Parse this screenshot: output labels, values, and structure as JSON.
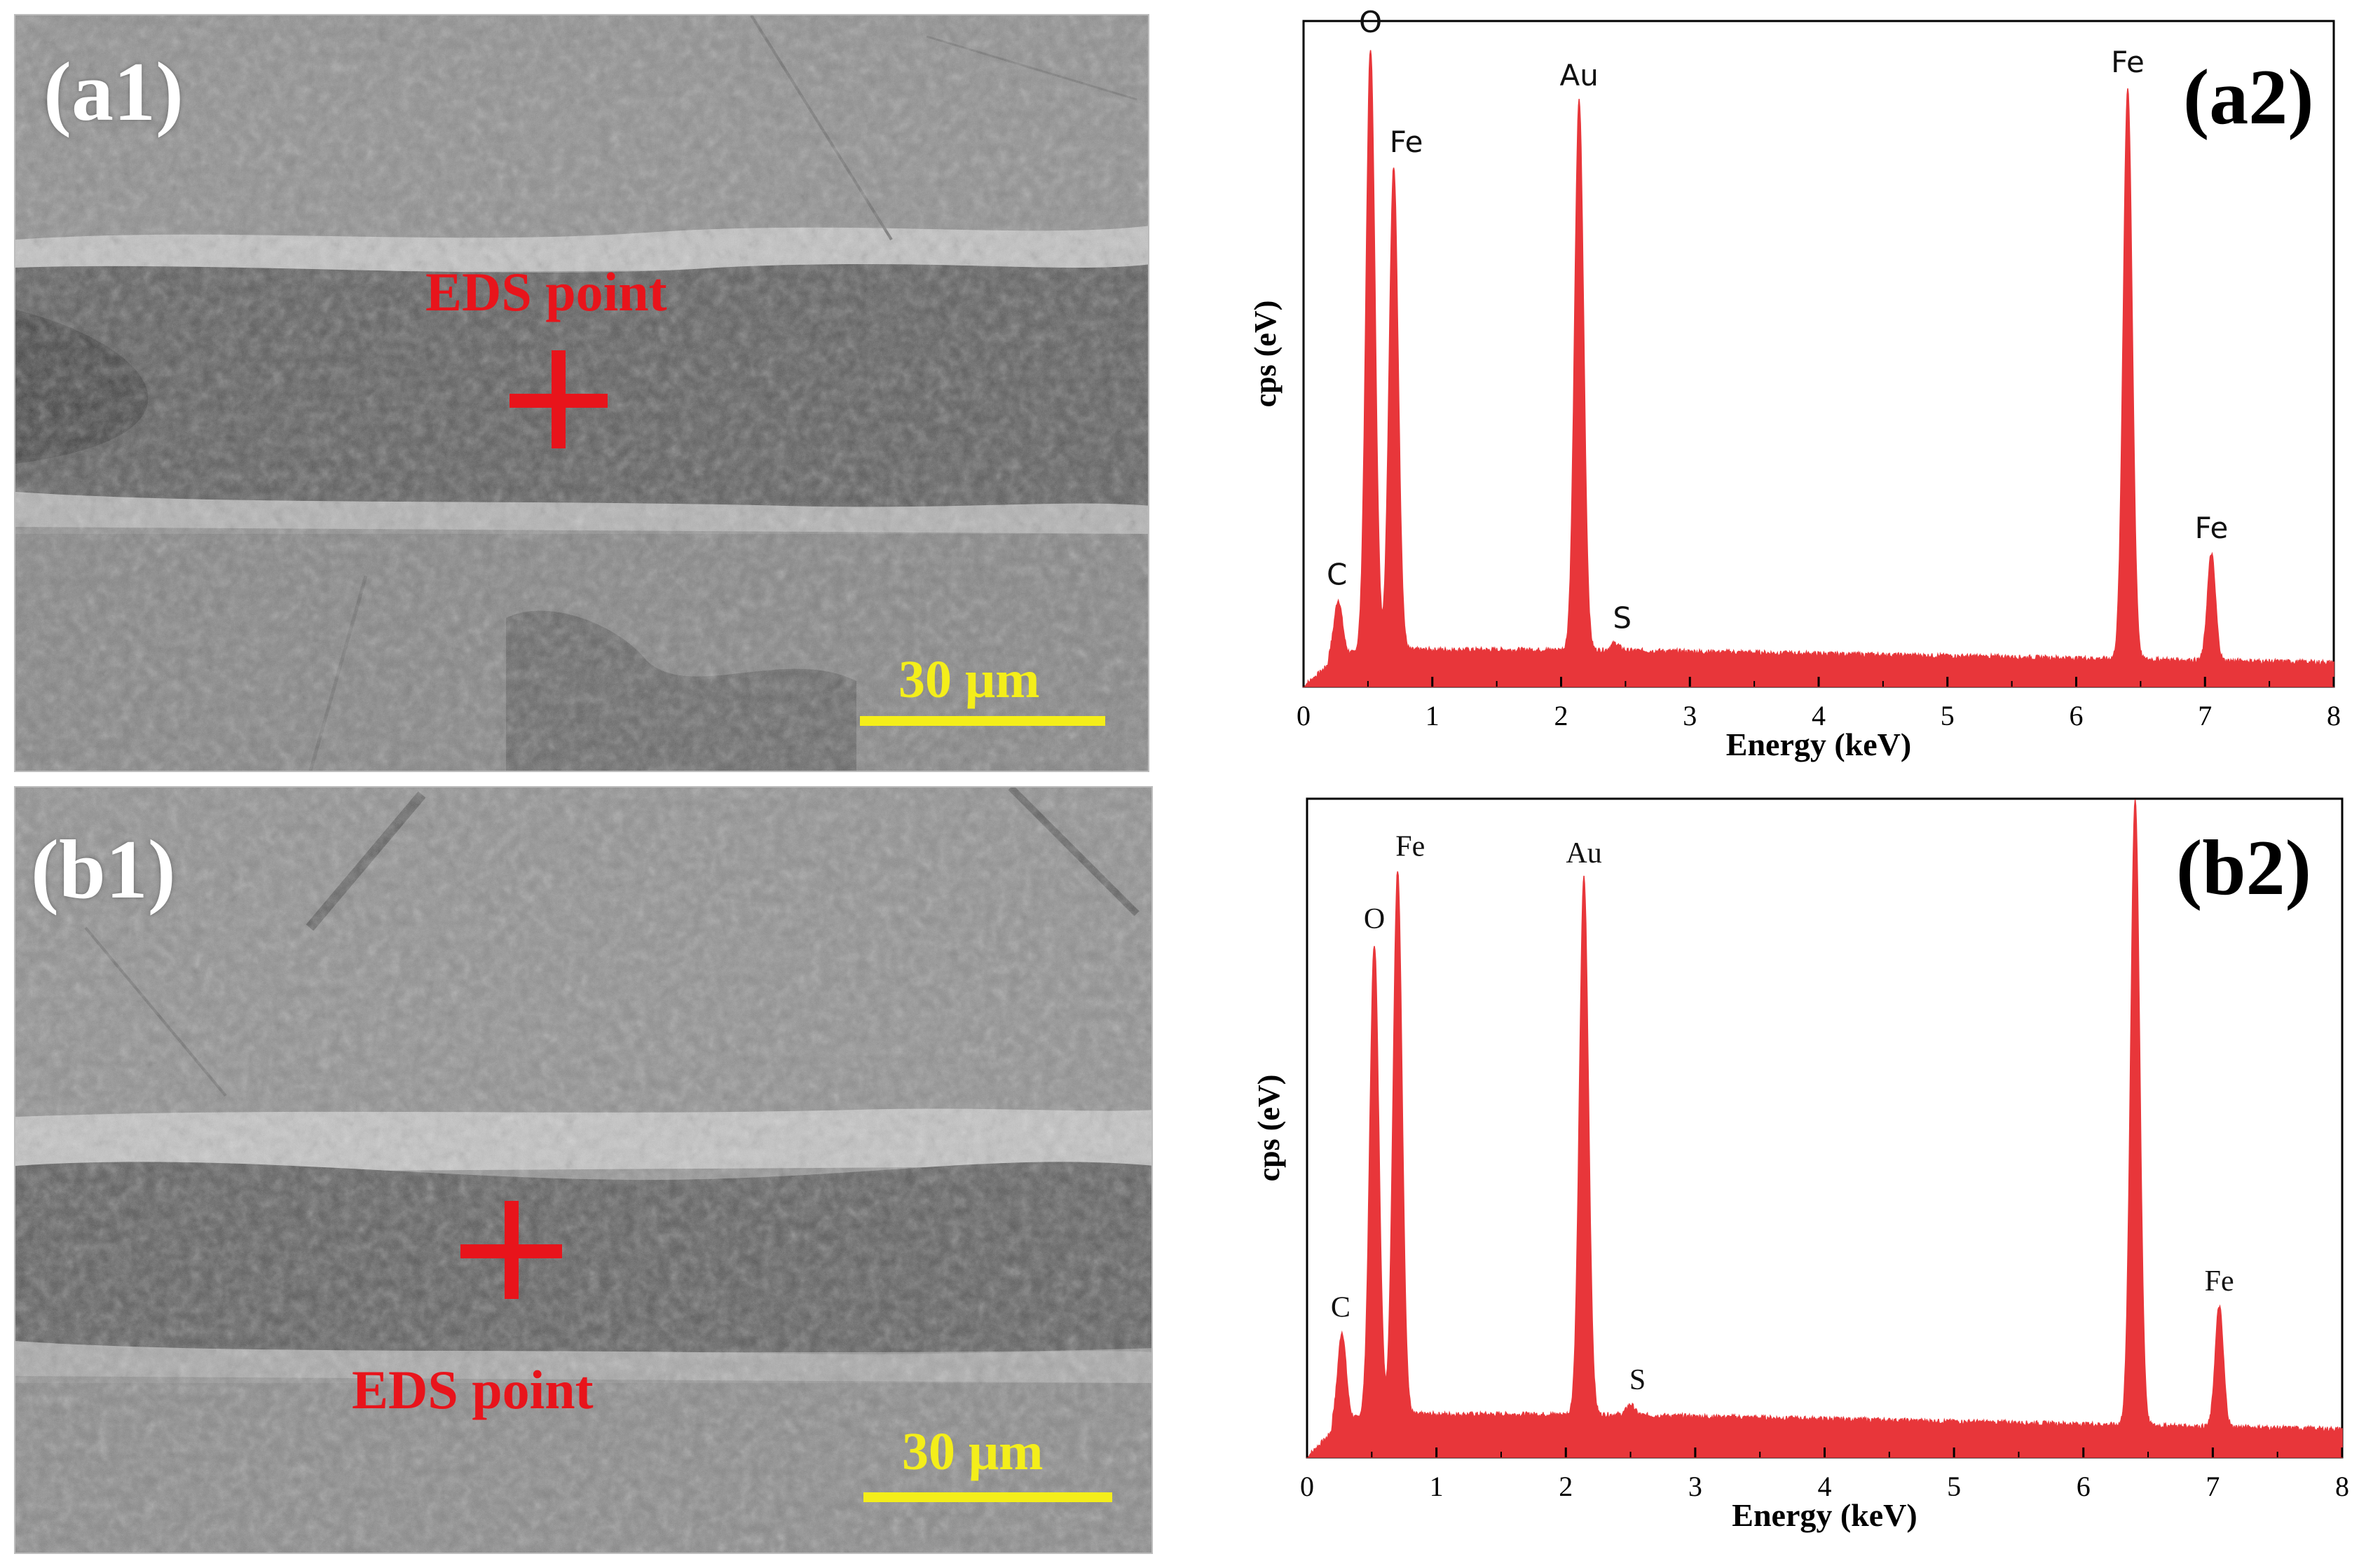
{
  "panels": {
    "a1": {
      "label": "(a1)",
      "eds_text": "EDS point",
      "scale_text": "30 μm"
    },
    "b1": {
      "label": "(b1)",
      "eds_text": "EDS point",
      "scale_text": "30 μm"
    },
    "a2": {
      "label": "(a2)"
    },
    "b2": {
      "label": "(b2)"
    }
  },
  "colors": {
    "spectrum": "#e8363a",
    "marker": "#e8141b",
    "scale": "#f4ee1a"
  },
  "chart_data": [
    {
      "type": "area",
      "panel": "a2",
      "xlabel": "Energy (keV)",
      "ylabel": "cps (eV)",
      "xlim": [
        0,
        8
      ],
      "xticks": [
        "0",
        "1",
        "2",
        "3",
        "4",
        "5",
        "6",
        "7",
        "8"
      ],
      "baseline": 0.055,
      "peaks": [
        {
          "label": "C",
          "x": 0.27,
          "y": 0.13
        },
        {
          "label": "O",
          "x": 0.52,
          "y": 0.96
        },
        {
          "label": "Fe",
          "x": 0.7,
          "y": 0.78
        },
        {
          "label": "Au",
          "x": 2.14,
          "y": 0.88
        },
        {
          "label": "S",
          "x": 2.42,
          "y": 0.065
        },
        {
          "label": "Fe",
          "x": 6.4,
          "y": 0.9
        },
        {
          "label": "Fe",
          "x": 7.05,
          "y": 0.2
        }
      ]
    },
    {
      "type": "area",
      "panel": "b2",
      "xlabel": "Energy (keV)",
      "ylabel": "cps (eV)",
      "xlim": [
        0,
        8
      ],
      "xticks": [
        "0",
        "1",
        "2",
        "3",
        "4",
        "5",
        "6",
        "7",
        "8"
      ],
      "baseline": 0.065,
      "peaks": [
        {
          "label": "C",
          "x": 0.27,
          "y": 0.19
        },
        {
          "label": "O",
          "x": 0.52,
          "y": 0.78
        },
        {
          "label": "Fe",
          "x": 0.7,
          "y": 0.89
        },
        {
          "label": "Au",
          "x": 2.14,
          "y": 0.88
        },
        {
          "label": "S",
          "x": 2.5,
          "y": 0.08
        },
        {
          "label": "Fe",
          "x": 6.4,
          "y": 1.0
        },
        {
          "label": "Fe",
          "x": 7.05,
          "y": 0.23
        }
      ]
    }
  ]
}
